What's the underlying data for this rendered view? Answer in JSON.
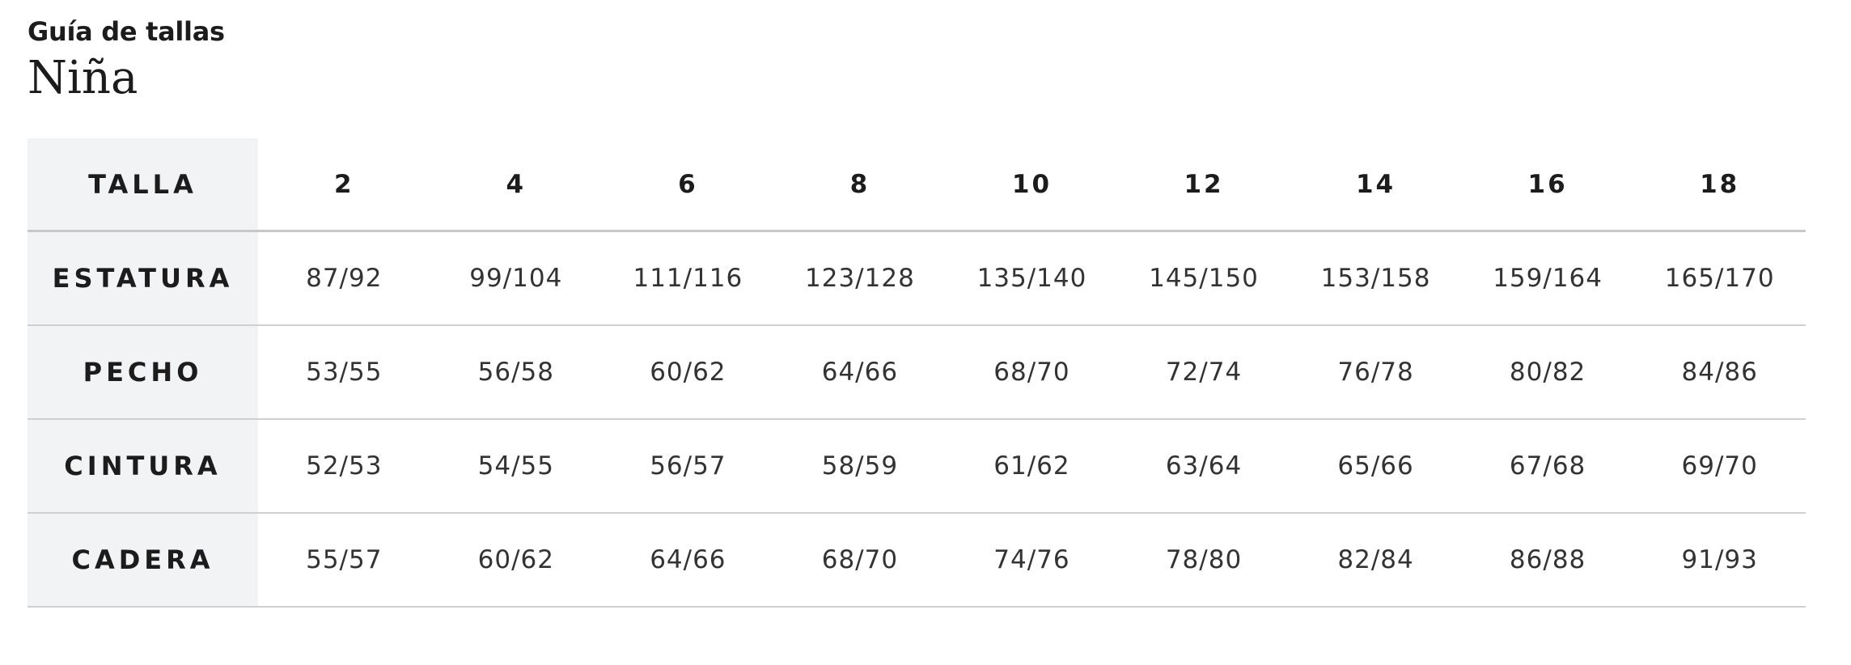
{
  "header": {
    "title": "Guía de tallas",
    "subtitle": "Niña"
  },
  "table": {
    "columns": [
      "TALLA",
      "2",
      "4",
      "6",
      "8",
      "10",
      "12",
      "14",
      "16",
      "18"
    ],
    "rows": [
      [
        "ESTATURA",
        "87/92",
        "99/104",
        "111/116",
        "123/128",
        "135/140",
        "145/150",
        "153/158",
        "159/164",
        "165/170"
      ],
      [
        "PECHO",
        "53/55",
        "56/58",
        "60/62",
        "64/66",
        "68/70",
        "72/74",
        "76/78",
        "80/82",
        "84/86"
      ],
      [
        "CINTURA",
        "52/53",
        "54/55",
        "56/57",
        "58/59",
        "61/62",
        "63/64",
        "65/66",
        "67/68",
        "69/70"
      ],
      [
        "CADERA",
        "55/57",
        "60/62",
        "64/66",
        "68/70",
        "74/76",
        "78/80",
        "82/84",
        "86/88",
        "91/93"
      ]
    ]
  }
}
